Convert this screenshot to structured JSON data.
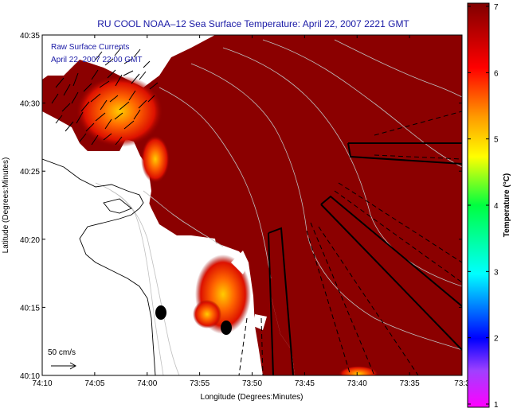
{
  "chart_data": {
    "type": "heatmap",
    "title": "RU COOL  NOAA–12  Sea Surface Temperature:  April 22, 2007 2221 GMT",
    "annotations": [
      "Raw Surface Currents",
      "April 22, 2007 22:00 GMT"
    ],
    "scale_label": "50 cm/s",
    "xlabel": "Longitude (Degrees:Minutes)",
    "ylabel": "Latitude (Degrees:Minutes)",
    "colorbar_label": "Temperature (°C)",
    "x_ticks": [
      "74:10",
      "74:05",
      "74:00",
      "73:55",
      "73:50",
      "73:45",
      "73:40",
      "73:35",
      "73:3"
    ],
    "y_ticks": [
      "40:35",
      "40:30",
      "40:25",
      "40:20",
      "40:15",
      "40:10"
    ],
    "colorbar_ticks": [
      "7",
      "6",
      "5",
      "4",
      "3",
      "2",
      "1"
    ],
    "colorbar_range": [
      1,
      7
    ],
    "xlim": [
      "74:10",
      "73:30"
    ],
    "ylim": [
      "40:10",
      "40:35"
    ],
    "dominant_temperature": 7,
    "warm_patches": [
      {
        "region": "near shore, upper left",
        "temperature": 5
      },
      {
        "region": "lower center",
        "temperature": 5.5
      },
      {
        "region": "lower right edge",
        "temperature": 5
      }
    ],
    "colors": {
      "ocean_sst": "#8b0000",
      "land": "#ffffff",
      "title_text": "#1a1aa6"
    }
  }
}
